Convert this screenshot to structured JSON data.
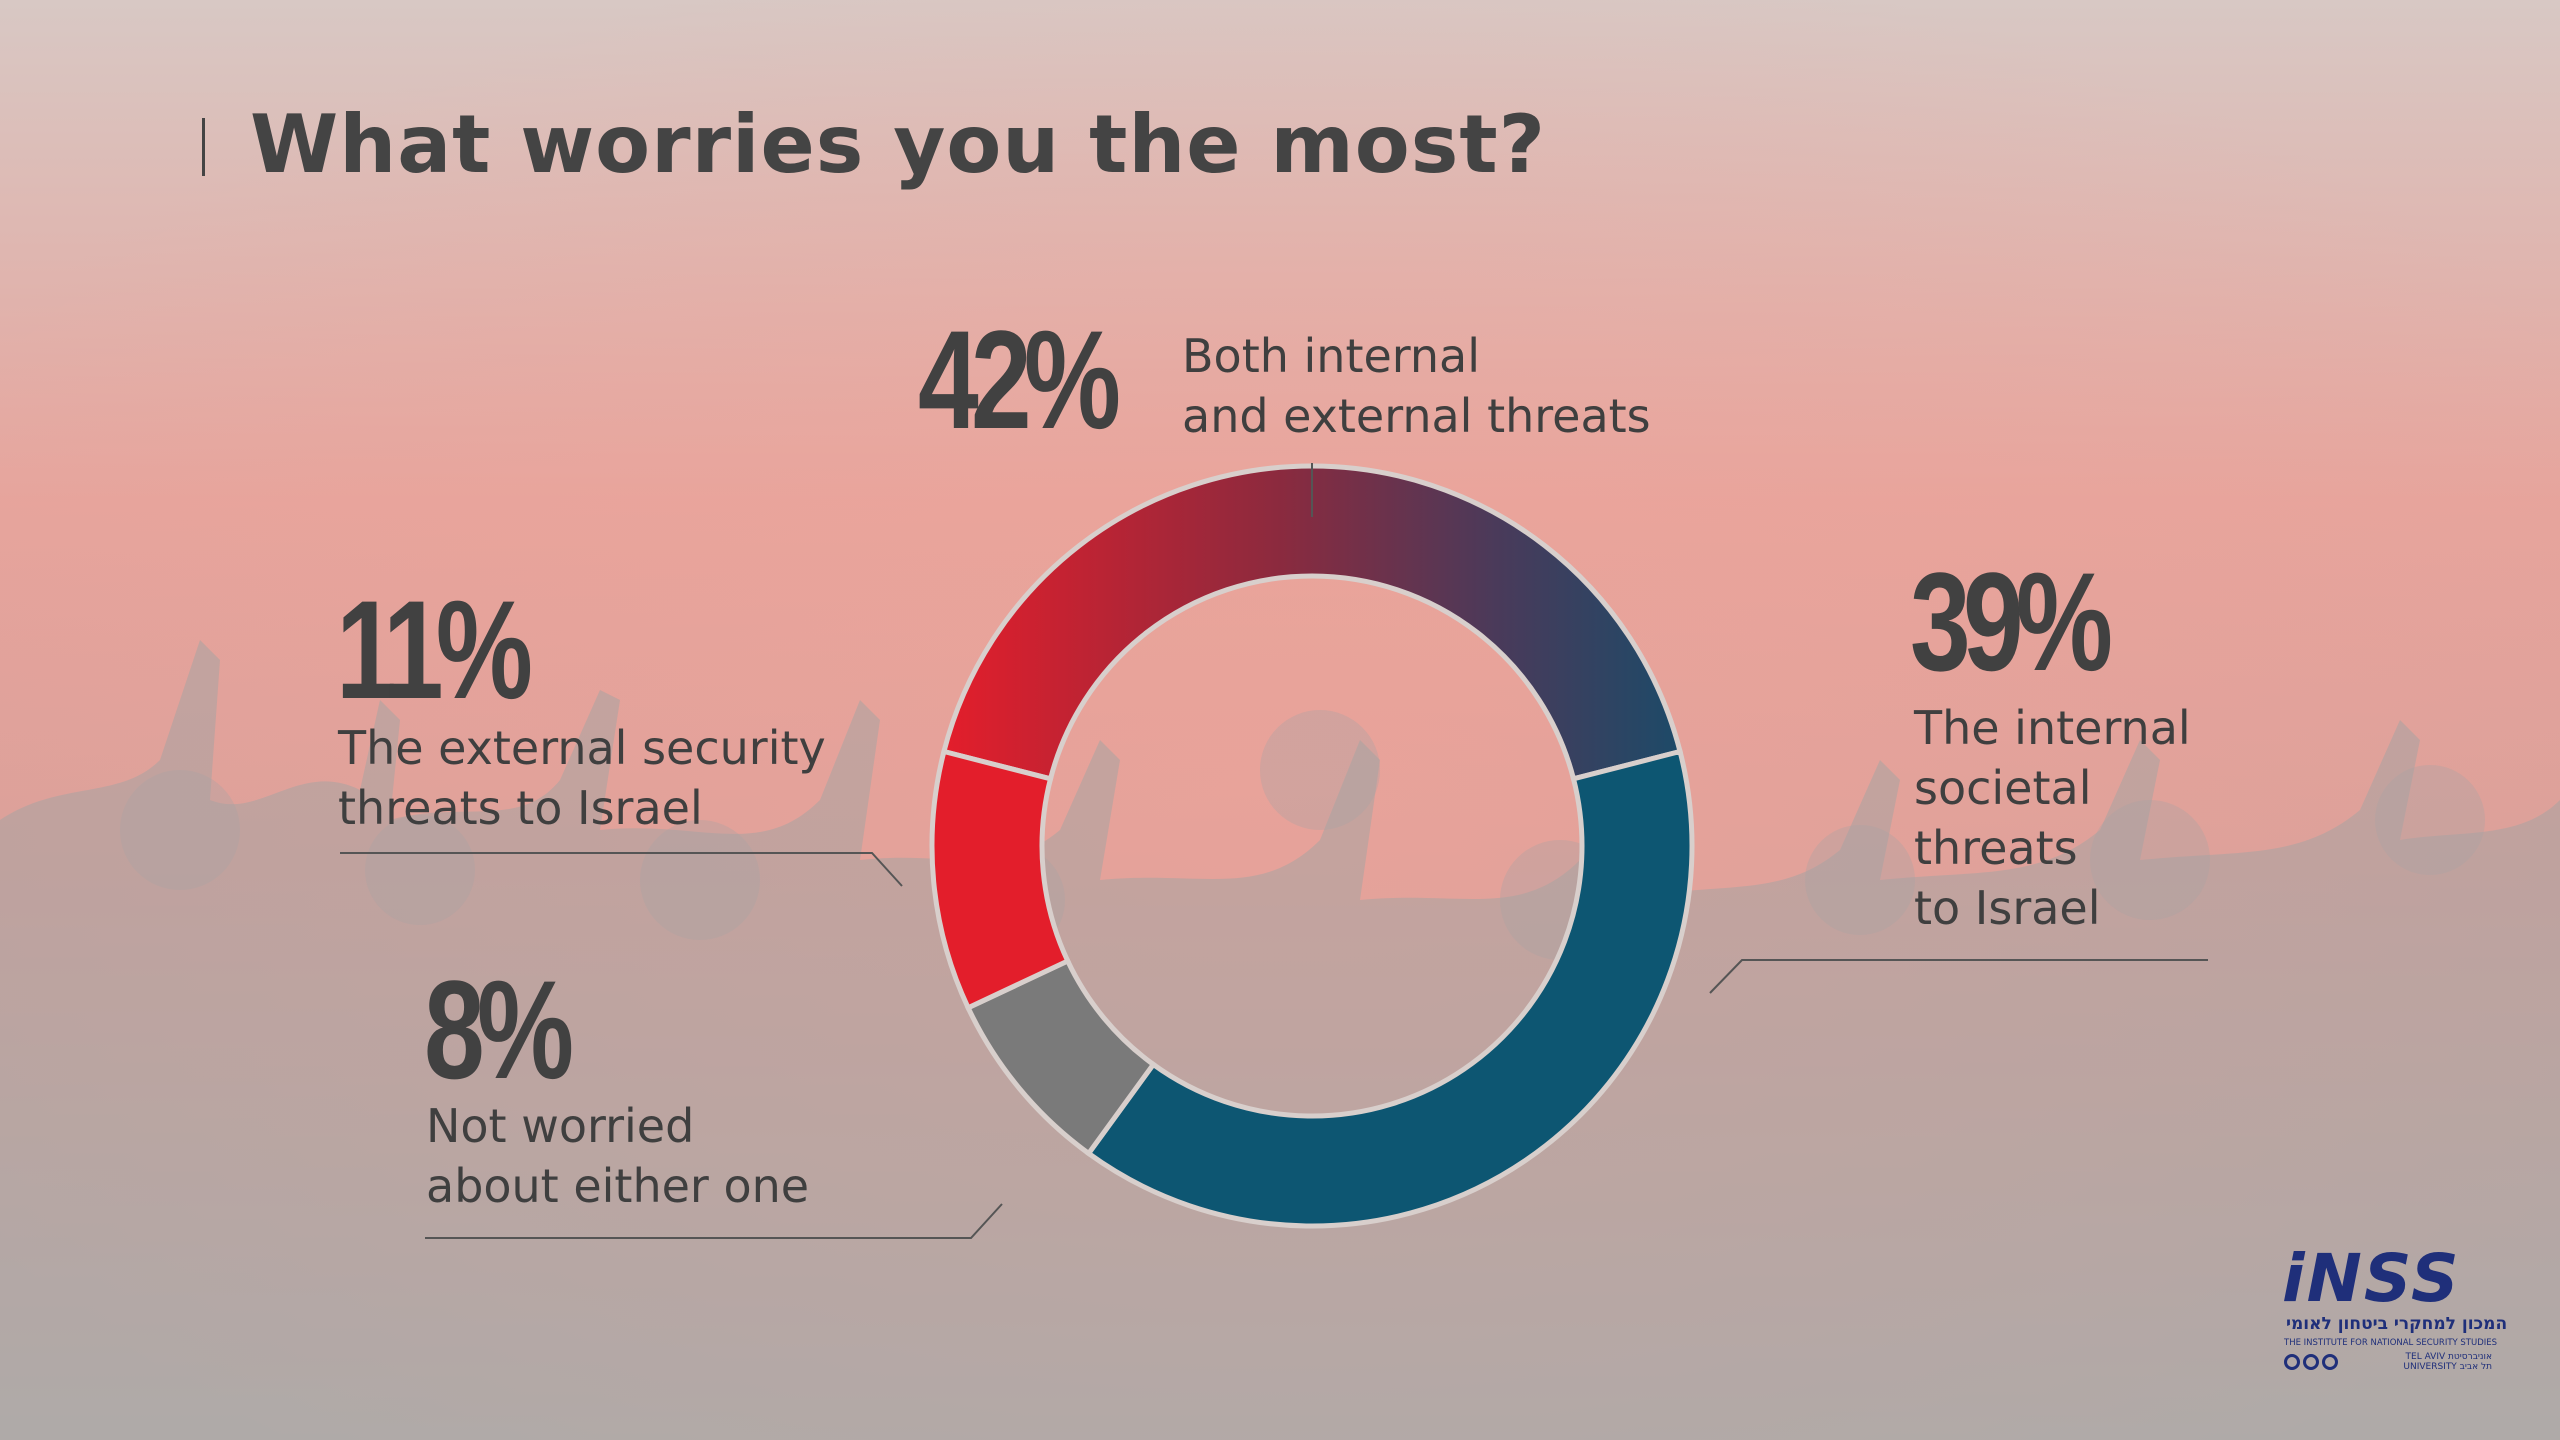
{
  "title": "What worries you the most?",
  "chart_data": {
    "type": "pie",
    "title": "What worries you the most?",
    "slices": [
      {
        "label": "Both internal and external threats",
        "value": 42,
        "display": "42%"
      },
      {
        "label": "The internal societal threats to Israel",
        "value": 39,
        "display": "39%"
      },
      {
        "label": "Not worried about either one",
        "value": 8,
        "display": "8%"
      },
      {
        "label": "The external security threats to Israel",
        "value": 11,
        "display": "11%"
      }
    ]
  },
  "labels": {
    "both": {
      "pct": "42%",
      "text": "Both internal\nand external threats"
    },
    "internal": {
      "pct": "39%",
      "text": "The internal\nsocietal\nthreats\nto Israel"
    },
    "external": {
      "pct": "11%",
      "text": "The external security\nthreats to Israel"
    },
    "none": {
      "pct": "8%",
      "text": "Not worried\nabout either one"
    }
  },
  "logo": {
    "name": "iNSS",
    "hebrew": "המכון למחקרי ביטחון לאומי",
    "english": "THE INSTITUTE FOR NATIONAL SECURITY STUDIES",
    "university": "TEL AVIV אוניברסיטת\nUNIVERSITY תל אביב"
  },
  "colors": {
    "red": "#e31e2b",
    "teal": "#0d5672",
    "gray": "#7a7a7a",
    "text": "#414141"
  }
}
